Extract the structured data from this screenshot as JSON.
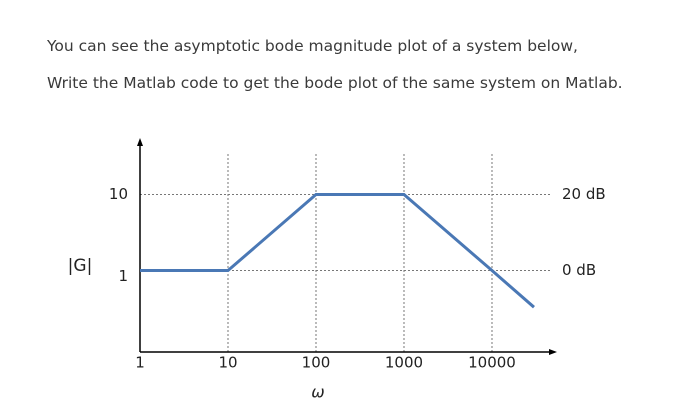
{
  "question": [
    "You can see the asymptotic bode magnitude plot of a system below,",
    "Write the Matlab code to get the bode plot of the same system on Matlab."
  ],
  "chart_data": {
    "type": "line",
    "log_x": true,
    "log_y": true,
    "xlabel": "ω",
    "ylabel": "|G|",
    "x": [
      1,
      10,
      100,
      1000,
      10000,
      30000
    ],
    "values": [
      1,
      1,
      10,
      10,
      1,
      0.33
    ],
    "color": "#4a78b5",
    "xlim": [
      1,
      52000
    ],
    "xticks": [
      1,
      10,
      100,
      1000,
      10000
    ],
    "ylim": [
      0.085,
      52
    ],
    "yticks": [
      1,
      10
    ],
    "y2lim": [
      -21.4,
      34.3
    ],
    "y2ticks": [
      {
        "value": 0,
        "label": "0 dB"
      },
      {
        "value": 20,
        "label": "20 dB"
      }
    ],
    "grid": true
  }
}
